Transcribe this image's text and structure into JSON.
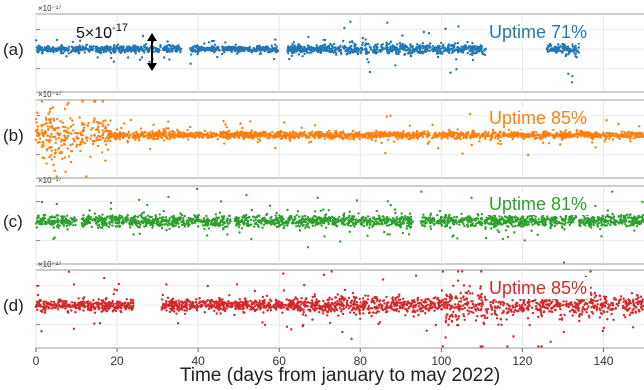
{
  "chart_data": {
    "type": "scatter",
    "x_axis": {
      "label": "Time (days from january to may 2022)",
      "xlim": [
        0,
        150
      ],
      "ticks": [
        0,
        20,
        40,
        60,
        80,
        100,
        120,
        140
      ],
      "tick_labels": [
        "0",
        "20",
        "40",
        "60",
        "80",
        "100",
        "120",
        "140"
      ]
    },
    "y_axis": {
      "unit_label": "×10⁻¹⁷",
      "tick_labels_shown": false
    },
    "scale_annotation": {
      "text_base": "5×10",
      "text_exp": "-17"
    },
    "panels": [
      {
        "label": "(a)",
        "uptime_text": "Uptime 71%",
        "color": "#1f77b4",
        "coverage_days": [
          [
            0,
            36
          ],
          [
            38,
            60
          ],
          [
            62,
            111
          ],
          [
            126,
            134
          ]
        ],
        "spread_segments": [
          [
            0,
            36,
            1.0
          ],
          [
            36,
            40,
            1.6
          ],
          [
            62,
            75,
            1.3
          ],
          [
            75,
            95,
            1.9
          ],
          [
            95,
            111,
            1.5
          ],
          [
            126,
            134,
            2.0
          ]
        ]
      },
      {
        "label": "(b)",
        "uptime_text": "Uptime 85%",
        "color": "#ff7f0e",
        "coverage_days": [
          [
            0,
            150
          ]
        ],
        "spread_segments": [
          [
            0,
            2,
            4.0
          ],
          [
            2,
            9,
            7.5
          ],
          [
            9,
            18,
            5.5
          ],
          [
            18,
            35,
            1.3
          ],
          [
            35,
            150,
            1.0
          ]
        ]
      },
      {
        "label": "(c)",
        "uptime_text": "Uptime 81%",
        "color": "#2ca02c",
        "coverage_days": [
          [
            0,
            10
          ],
          [
            11,
            48
          ],
          [
            49,
            93
          ],
          [
            95,
            150
          ]
        ],
        "spread_segments": [
          [
            0,
            150,
            1.8
          ]
        ]
      },
      {
        "label": "(d)",
        "uptime_text": "Uptime 85%",
        "color": "#d62728",
        "coverage_days": [
          [
            0,
            24
          ],
          [
            31,
            150
          ]
        ],
        "spread_segments": [
          [
            0,
            24,
            1.7
          ],
          [
            31,
            65,
            1.8
          ],
          [
            65,
            100,
            2.6
          ],
          [
            100,
            118,
            5.0
          ],
          [
            118,
            150,
            3.5
          ]
        ]
      }
    ]
  }
}
